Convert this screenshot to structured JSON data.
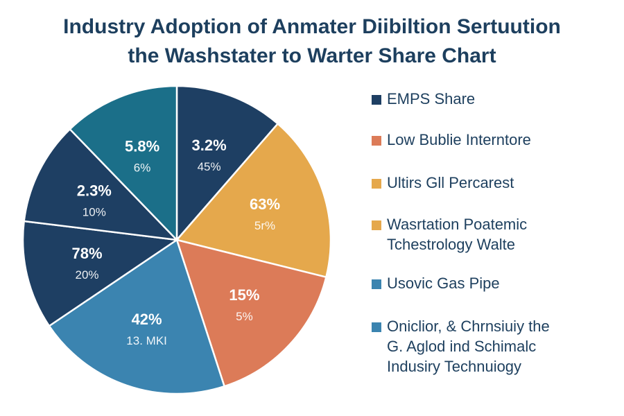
{
  "chart_data": {
    "type": "pie",
    "title": [
      "Industry Adoption of Anmater Diibiltion Sertuution",
      "the Washstater to Warter Share Chart"
    ],
    "slices": [
      {
        "primary": "3.2%",
        "secondary": "45%",
        "start_deg": 0,
        "end_deg": 41,
        "color": "#1e3f63"
      },
      {
        "primary": "63%",
        "secondary": "5r%",
        "start_deg": 41,
        "end_deg": 104,
        "color": "#e5a84c"
      },
      {
        "primary": "15%",
        "secondary": "5%",
        "start_deg": 104,
        "end_deg": 162,
        "color": "#dc7b58"
      },
      {
        "primary": "42%",
        "secondary": "13. MKI",
        "start_deg": 162,
        "end_deg": 236,
        "color": "#3b84b0"
      },
      {
        "primary": "78%",
        "secondary": "20%",
        "start_deg": 236,
        "end_deg": 277,
        "color": "#1e3f63"
      },
      {
        "primary": "2.3%",
        "secondary": "10%",
        "start_deg": 277,
        "end_deg": 316,
        "color": "#1e3f63"
      },
      {
        "primary": "5.8%",
        "secondary": "6%",
        "start_deg": 316,
        "end_deg": 360,
        "color": "#1b6f89"
      }
    ],
    "legend": [
      {
        "lines": [
          "EMPS Share"
        ],
        "color": "#1e3f63"
      },
      {
        "lines": [
          "Low Bublie Interntore"
        ],
        "color": "#dc7b58"
      },
      {
        "lines": [
          "Ultirs Gll Percarest"
        ],
        "color": "#e5a84c"
      },
      {
        "lines": [
          "Wasrtation Poatemic",
          "Tchestrology Walte"
        ],
        "color": "#e5a84c"
      },
      {
        "lines": [
          "Usovic Gas Pipe"
        ],
        "color": "#3b84b0"
      },
      {
        "lines": [
          "Oniclior, & Chrnsiuiy the",
          "G. Aglod ind Schimalc",
          "Indusiry Technuiogy"
        ],
        "color": "#3b84b0"
      }
    ]
  }
}
